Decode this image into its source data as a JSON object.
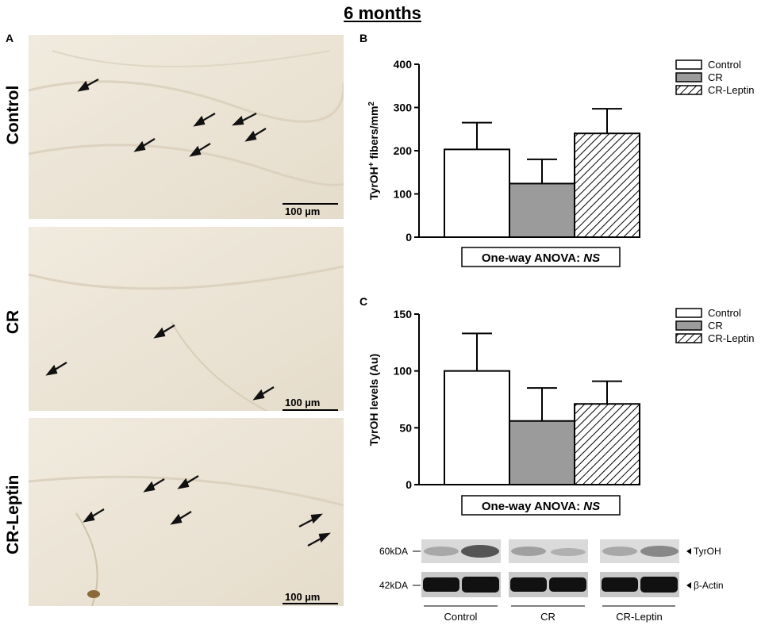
{
  "figure_title": "6 months",
  "panel_a": {
    "letter": "A",
    "rows": [
      {
        "label": "Control",
        "scale_bar": "100 µm"
      },
      {
        "label": "CR",
        "scale_bar": "100 µm"
      },
      {
        "label": "CR-Leptin",
        "scale_bar": "100 µm"
      }
    ]
  },
  "panel_b": {
    "letter": "B"
  },
  "panel_c": {
    "letter": "C"
  },
  "western_blot": {
    "bands": [
      {
        "marker": "60kDA",
        "label": "TyrOH"
      },
      {
        "marker": "42kDA",
        "label": "β-Actin"
      }
    ],
    "groups": [
      "Control",
      "CR",
      "CR-Leptin"
    ]
  },
  "colors": {
    "control": "#ffffff",
    "cr": "#9b9b9b",
    "cr_leptin_hatch": "#000000"
  },
  "chart_data": [
    {
      "type": "bar",
      "panel": "B",
      "categories": [
        "Control",
        "CR",
        "CR-Leptin"
      ],
      "values": [
        203,
        124,
        240
      ],
      "errors": [
        62,
        56,
        57
      ],
      "ylabel_main": "TyrOH",
      "ylabel_sup": "+",
      "ylabel_rest": " fibers/mm",
      "ylabel_unit_sup": "2",
      "ylim": [
        0,
        400
      ],
      "yticks": [
        "0",
        "100",
        "200",
        "300",
        "400"
      ],
      "legend": [
        "Control",
        "CR",
        "CR-Leptin"
      ],
      "legend_position": "top-right",
      "stat_label": "One-way ANOVA: ",
      "stat_result": "NS"
    },
    {
      "type": "bar",
      "panel": "C",
      "categories": [
        "Control",
        "CR",
        "CR-Leptin"
      ],
      "values": [
        100,
        56,
        71
      ],
      "errors": [
        33,
        29,
        20
      ],
      "ylabel": "TyrOH levels (Au)",
      "ylim": [
        0,
        150
      ],
      "yticks": [
        "0",
        "50",
        "100",
        "150"
      ],
      "legend": [
        "Control",
        "CR",
        "CR-Leptin"
      ],
      "legend_position": "top-right",
      "stat_label": "One-way ANOVA: ",
      "stat_result": "NS"
    }
  ]
}
